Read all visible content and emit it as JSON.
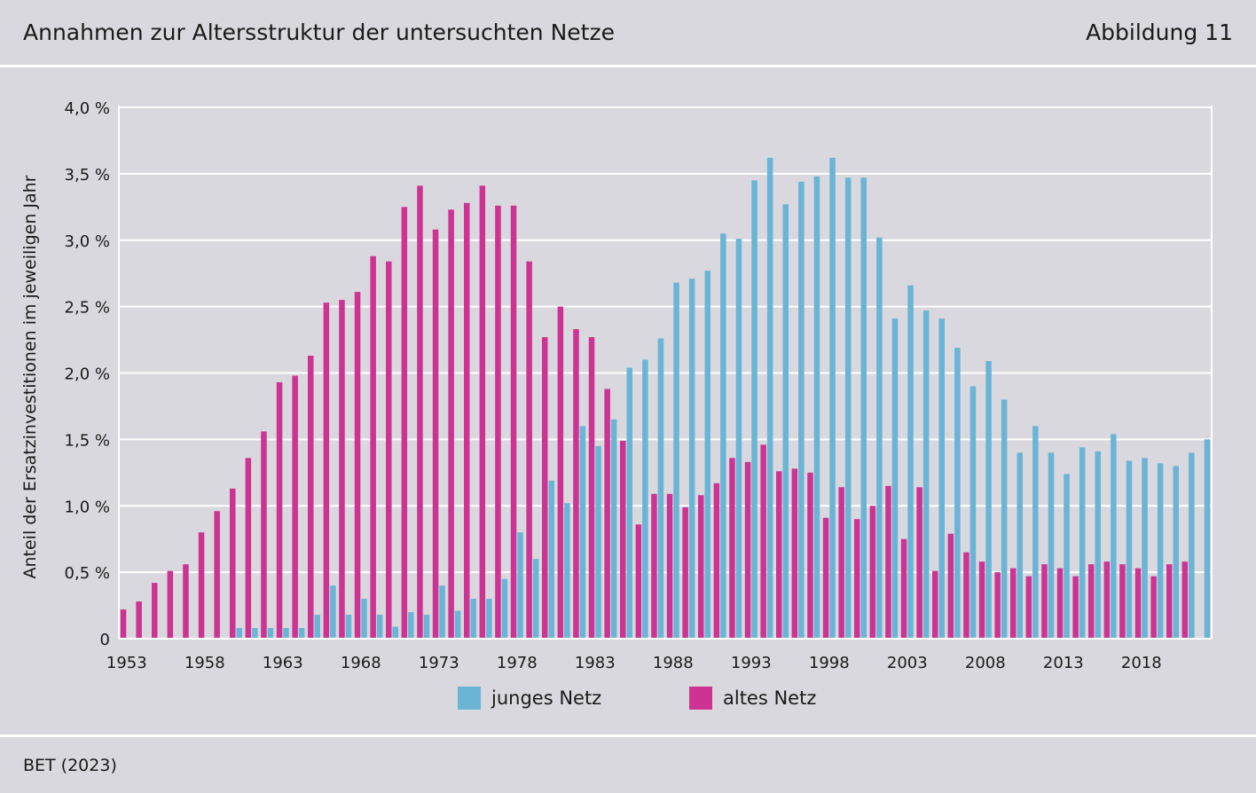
{
  "header": {
    "title": "Annahmen zur Altersstruktur der untersuchten Netze",
    "figure_label": "Abbildung 11"
  },
  "source": "BET (2023)",
  "colors": {
    "young": "#6ab4d6",
    "old": "#cc3392",
    "grid": "#ffffff",
    "background": "#d9d8de"
  },
  "chart_data": {
    "type": "bar",
    "title": "Annahmen zur Altersstruktur der untersuchten Netze",
    "ylabel": "Anteil der Ersatzinvestitionen im jeweiligen Jahr",
    "xlabel": "",
    "ylim": [
      0,
      4.0
    ],
    "yticks": [
      0,
      0.5,
      1.0,
      1.5,
      2.0,
      2.5,
      3.0,
      3.5,
      4.0
    ],
    "ytick_labels": [
      "0",
      "0,5 %",
      "1,0 %",
      "1,5 %",
      "2,0 %",
      "2,5 %",
      "3,0 %",
      "3,5 %",
      "4,0 %"
    ],
    "xtick_labels": [
      "1953",
      "1958",
      "1963",
      "1968",
      "1973",
      "1978",
      "1983",
      "1988",
      "1993",
      "1998",
      "2003",
      "2008",
      "2013",
      "2018"
    ],
    "grid": true,
    "legend_position": "bottom-center",
    "categories": [
      1953,
      1954,
      1955,
      1956,
      1957,
      1958,
      1959,
      1960,
      1961,
      1962,
      1963,
      1964,
      1965,
      1966,
      1967,
      1968,
      1969,
      1970,
      1971,
      1972,
      1973,
      1974,
      1975,
      1976,
      1977,
      1978,
      1979,
      1980,
      1981,
      1982,
      1983,
      1984,
      1985,
      1986,
      1987,
      1988,
      1989,
      1990,
      1991,
      1992,
      1993,
      1994,
      1995,
      1996,
      1997,
      1998,
      1999,
      2000,
      2001,
      2002,
      2003,
      2004,
      2005,
      2006,
      2007,
      2008,
      2009,
      2010,
      2011,
      2012,
      2013,
      2014,
      2015,
      2016,
      2017,
      2018,
      2019,
      2020,
      2021,
      2022
    ],
    "series": [
      {
        "name": "altes Netz",
        "values": [
          0.22,
          0.28,
          0.42,
          0.51,
          0.56,
          0.8,
          0.96,
          1.13,
          1.36,
          1.56,
          1.93,
          1.98,
          2.13,
          2.53,
          2.55,
          2.61,
          2.88,
          2.84,
          3.25,
          3.41,
          3.08,
          3.23,
          3.28,
          3.41,
          3.26,
          3.26,
          2.84,
          2.27,
          2.5,
          2.33,
          2.27,
          1.88,
          1.49,
          0.86,
          1.09,
          1.09,
          0.99,
          1.08,
          1.17,
          1.36,
          1.33,
          1.46,
          1.26,
          1.28,
          1.25,
          0.91,
          1.14,
          0.9,
          1.0,
          1.15,
          0.75,
          1.14,
          0.51,
          0.79,
          0.65,
          0.58,
          0.5,
          0.53,
          0.47,
          0.56,
          0.53,
          0.47,
          0.56,
          0.58,
          0.56,
          0.53,
          0.47,
          0.56,
          0.58,
          0.0
        ]
      },
      {
        "name": "junges Netz",
        "values": [
          0,
          0,
          0,
          0,
          0,
          0,
          0,
          0.08,
          0.08,
          0.08,
          0.08,
          0.08,
          0.18,
          0.4,
          0.18,
          0.3,
          0.18,
          0.09,
          0.2,
          0.18,
          0.4,
          0.21,
          0.3,
          0.3,
          0.45,
          0.8,
          0.6,
          1.19,
          1.02,
          1.6,
          1.45,
          1.65,
          2.04,
          2.1,
          2.26,
          2.68,
          2.71,
          2.77,
          3.05,
          3.01,
          3.45,
          3.62,
          3.27,
          3.44,
          3.48,
          3.62,
          3.47,
          3.47,
          3.02,
          2.41,
          2.66,
          2.47,
          2.41,
          2.19,
          1.9,
          2.09,
          1.8,
          1.4,
          1.6,
          1.4,
          1.24,
          1.44,
          1.41,
          1.54,
          1.34,
          1.36,
          1.32,
          1.3,
          1.4,
          1.5
        ]
      }
    ]
  },
  "legend": {
    "young_label": "junges Netz",
    "old_label": "altes Netz"
  }
}
